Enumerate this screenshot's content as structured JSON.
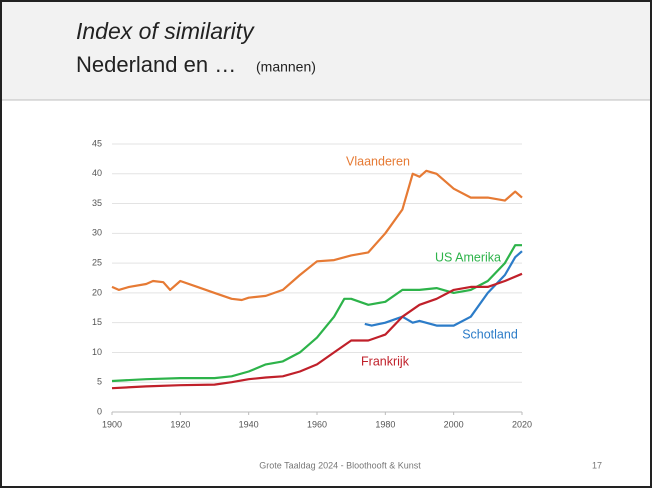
{
  "header": {
    "title": "Index of similarity",
    "subtitle": "Nederland en …",
    "subtitle_note": "(mannen)"
  },
  "footer": {
    "text": "Grote Taaldag 2024 - Bloothooft & Kunst",
    "page": "17"
  },
  "chart_data": {
    "type": "line",
    "xlim": [
      1900,
      2020
    ],
    "xticks": [
      1900,
      1920,
      1940,
      1960,
      1980,
      2000,
      2020
    ],
    "ylim": [
      0,
      45
    ],
    "yticks": [
      0,
      5,
      10,
      15,
      20,
      25,
      30,
      35,
      40,
      45
    ],
    "grid": true,
    "series": [
      {
        "name": "Vlaanderen",
        "color": "#e67a34",
        "x": [
          1900,
          1902,
          1905,
          1910,
          1912,
          1915,
          1917,
          1920,
          1925,
          1930,
          1935,
          1938,
          1940,
          1945,
          1950,
          1955,
          1960,
          1965,
          1970,
          1975,
          1980,
          1985,
          1988,
          1990,
          1992,
          1995,
          2000,
          2005,
          2010,
          2015,
          2018,
          2020
        ],
        "values": [
          21,
          20.5,
          21,
          21.5,
          22,
          21.8,
          20.5,
          22,
          21,
          20,
          19,
          18.8,
          19.2,
          19.5,
          20.5,
          23,
          25.3,
          25.5,
          26.3,
          26.8,
          30,
          34,
          40,
          39.5,
          40.5,
          40,
          37.5,
          36,
          36,
          35.5,
          37,
          36
        ]
      },
      {
        "name": "US Amerika",
        "color": "#2db34a",
        "x": [
          1900,
          1910,
          1920,
          1930,
          1935,
          1940,
          1945,
          1950,
          1955,
          1960,
          1965,
          1968,
          1970,
          1975,
          1980,
          1985,
          1990,
          1995,
          2000,
          2005,
          2010,
          2015,
          2018,
          2020
        ],
        "values": [
          5.2,
          5.5,
          5.7,
          5.7,
          6,
          6.8,
          8,
          8.5,
          10,
          12.5,
          16,
          19,
          19,
          18,
          18.5,
          20.5,
          20.5,
          20.8,
          20,
          20.5,
          22,
          25,
          28,
          28
        ]
      },
      {
        "name": "Schotland",
        "color": "#2c7cc8",
        "x": [
          1974,
          1976,
          1980,
          1985,
          1988,
          1990,
          1995,
          2000,
          2005,
          2010,
          2015,
          2018,
          2020
        ],
        "values": [
          14.8,
          14.5,
          15,
          16,
          15,
          15.3,
          14.5,
          14.5,
          16,
          20,
          23,
          26,
          27
        ]
      },
      {
        "name": "Frankrijk",
        "color": "#c0202a",
        "x": [
          1900,
          1910,
          1920,
          1930,
          1935,
          1940,
          1945,
          1950,
          1955,
          1960,
          1965,
          1970,
          1975,
          1980,
          1985,
          1990,
          1995,
          2000,
          2005,
          2010,
          2015,
          2020
        ],
        "values": [
          4,
          4.3,
          4.5,
          4.6,
          5,
          5.5,
          5.8,
          6,
          6.8,
          8,
          10,
          12,
          12,
          13,
          16,
          18,
          19,
          20.5,
          21,
          21,
          22,
          23.2
        ]
      }
    ]
  }
}
